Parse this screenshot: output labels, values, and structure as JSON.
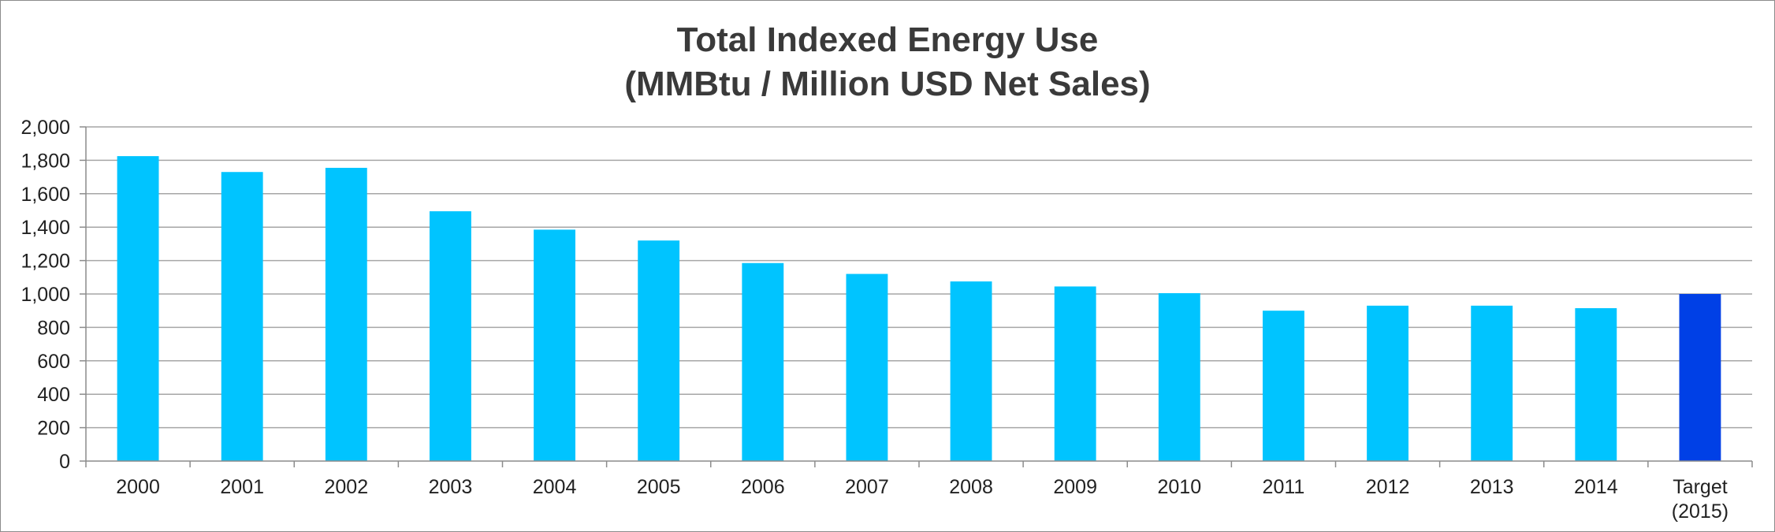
{
  "chart_data": {
    "type": "bar",
    "title_lines": [
      "Total Indexed Energy Use",
      "(MMBtu / Million USD Net Sales)"
    ],
    "categories": [
      "2000",
      "2001",
      "2002",
      "2003",
      "2004",
      "2005",
      "2006",
      "2007",
      "2008",
      "2009",
      "2010",
      "2011",
      "2012",
      "2013",
      "2014",
      "Target\n(2015)"
    ],
    "values": [
      1825,
      1730,
      1755,
      1495,
      1385,
      1320,
      1185,
      1120,
      1075,
      1045,
      1005,
      900,
      930,
      930,
      915,
      1000
    ],
    "highlight_index": 15,
    "ylim": [
      0,
      2000
    ],
    "yticks": [
      0,
      200,
      400,
      600,
      800,
      1000,
      1200,
      1400,
      1600,
      1800,
      2000
    ],
    "ytick_labels": [
      "0",
      "200",
      "400",
      "600",
      "800",
      "1,000",
      "1,200",
      "1,400",
      "1,600",
      "1,800",
      "2,000"
    ],
    "grid": true,
    "xlabel": "",
    "ylabel": "",
    "colors": {
      "bar": "#00c4ff",
      "highlight": "#0040e6",
      "grid": "#a6a6a6",
      "axis": "#8c8c8c"
    }
  }
}
